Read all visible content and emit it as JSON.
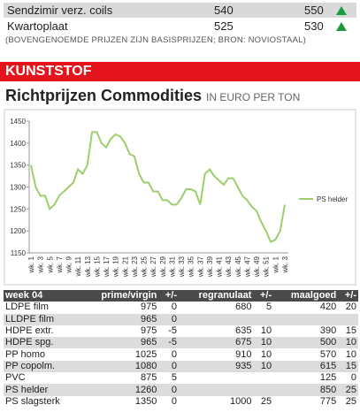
{
  "top_rows": [
    {
      "name": "Sendzimir verz. coils",
      "old": "540",
      "new": "550"
    },
    {
      "name": "Kwartoplaat",
      "old": "525",
      "new": "530"
    }
  ],
  "note": "(BOVENGENOEMDE PRIJZEN ZIJN BASISPRIJZEN; BRON: NOVIOSTAAL)",
  "section": "KUNSTSTOF",
  "title": "Richtprijzen Commodities",
  "subtitle": "IN EURO PER TON",
  "chart_data": {
    "type": "line",
    "categories": [
      "wk. 1",
      null,
      "wk. 3",
      null,
      "wk. 5",
      null,
      "wk. 7",
      null,
      "wk. 9",
      null,
      "wk. 11",
      null,
      "wk. 13",
      null,
      "wk. 15",
      null,
      "wk. 17",
      null,
      "wk. 19",
      null,
      "wk. 21",
      null,
      "wk. 23",
      null,
      "wk. 25",
      null,
      "wk. 27",
      null,
      "wk. 29",
      null,
      "wk. 31",
      null,
      "wk. 33",
      null,
      "wk. 35",
      null,
      "wk. 37",
      null,
      "wk. 39",
      null,
      "wk. 41",
      null,
      "wk. 43",
      null,
      "wk. 45",
      null,
      "wk. 47",
      null,
      "wk. 49",
      null,
      "wk. 51",
      null,
      "wk. 1",
      null,
      "wk. 3"
    ],
    "series": [
      {
        "name": "PS helder",
        "color": "#9bcf6b",
        "values": [
          1350,
          1300,
          1280,
          1280,
          1250,
          1260,
          1280,
          1290,
          1300,
          1310,
          1340,
          1330,
          1350,
          1425,
          1425,
          1400,
          1390,
          1410,
          1420,
          1415,
          1400,
          1375,
          1370,
          1330,
          1310,
          1310,
          1290,
          1290,
          1270,
          1270,
          1260,
          1260,
          1275,
          1295,
          1295,
          1290,
          1260,
          1330,
          1340,
          1325,
          1315,
          1305,
          1320,
          1320,
          1300,
          1280,
          1270,
          1255,
          1245,
          1220,
          1200,
          1175,
          1180,
          1200,
          1260
        ]
      }
    ],
    "ylim": [
      1150,
      1450
    ],
    "yticks": [
      1150,
      1200,
      1250,
      1300,
      1350,
      1400,
      1450
    ],
    "legend": "right"
  },
  "table": {
    "header": [
      "week 04",
      "prime/virgin",
      "+/-",
      "regranulaat",
      "+/-",
      "maalgoed",
      "+/-"
    ],
    "rows": [
      [
        "LDPE film",
        "975",
        "0",
        "680",
        "5",
        "420",
        "20"
      ],
      [
        "LLDPE film",
        "965",
        "0",
        null,
        null,
        null,
        null
      ],
      [
        "HDPE extr.",
        "975",
        "-5",
        "635",
        "10",
        "390",
        "15"
      ],
      [
        "HDPE spg.",
        "965",
        "-5",
        "675",
        "10",
        "500",
        "10"
      ],
      [
        "PP homo",
        "1025",
        "0",
        "910",
        "10",
        "570",
        "10"
      ],
      [
        "PP copolm.",
        "1080",
        "0",
        "935",
        "10",
        "615",
        "15"
      ],
      [
        "PVC",
        "875",
        "5",
        null,
        null,
        "125",
        "0"
      ],
      [
        "PS helder",
        "1260",
        "0",
        null,
        null,
        "850",
        "25"
      ],
      [
        "PS slagsterk",
        "1350",
        "0",
        "1000",
        "25",
        "775",
        "25"
      ]
    ]
  }
}
